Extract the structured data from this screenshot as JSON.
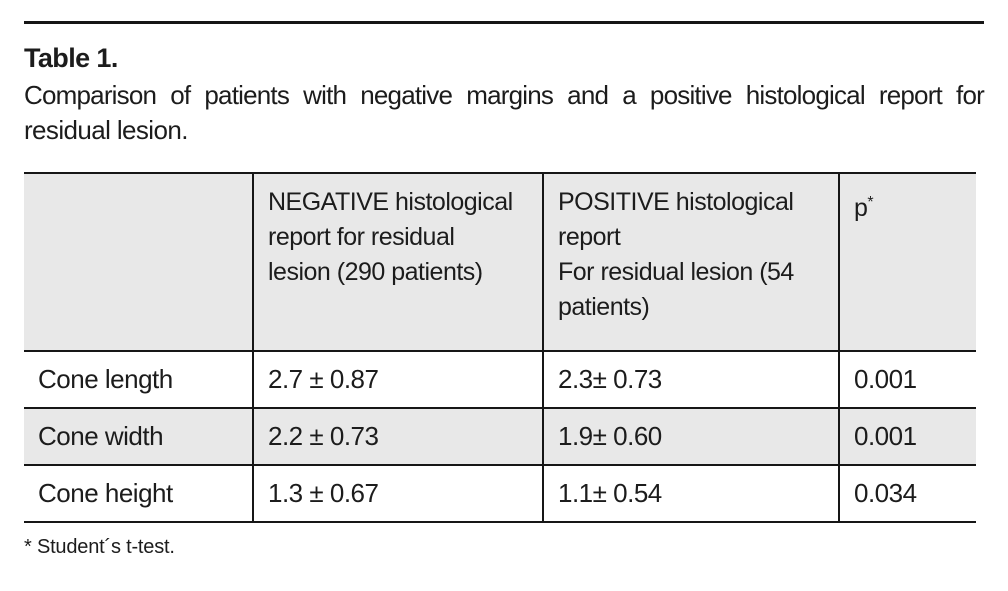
{
  "document": {
    "title": "Table 1.",
    "caption": {
      "line1": "Comparison of patients with negative margins and a positive histological report for",
      "line2": "residual lesion."
    },
    "footnote": "* Student´s t-test."
  },
  "table": {
    "header": {
      "row_label": "",
      "negative": "NEGATIVE histological\nreport for residual\nlesion (290 patients)",
      "positive": "POSITIVE histological\nreport\nFor residual lesion (54\npatients)",
      "p": "p",
      "p_superscript": "*"
    },
    "rows": [
      {
        "label": "Cone length",
        "negative": "2.7 ± 0.87",
        "positive": "2.3± 0.73",
        "p": "0.001"
      },
      {
        "label": "Cone width",
        "negative": "2.2 ± 0.73",
        "positive": "1.9± 0.60",
        "p": "0.001"
      },
      {
        "label": "Cone height",
        "negative": "1.3 ± 0.67",
        "positive": "1.1± 0.54",
        "p": "0.034"
      }
    ],
    "style": {
      "header_background": "#e8e8e8",
      "zebra_background": "#e8e8e8",
      "border_color": "#161616",
      "text_color": "#1c1c1c"
    }
  }
}
